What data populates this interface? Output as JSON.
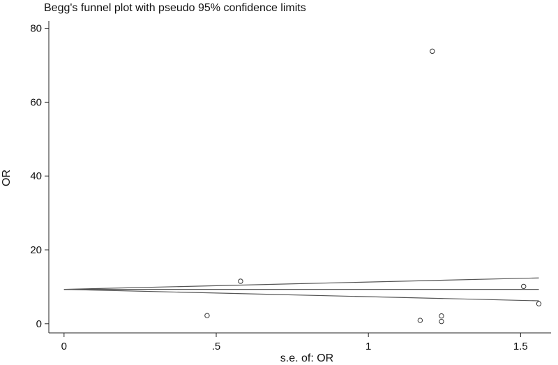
{
  "chart_data": {
    "type": "scatter",
    "title": "Begg's funnel plot with pseudo 95% confidence limits",
    "xlabel": "s.e. of: OR",
    "ylabel": "OR",
    "xlim": [
      -0.05,
      1.6
    ],
    "ylim": [
      -0.6,
      82
    ],
    "x_ticks": [
      {
        "value": 0,
        "label": "0"
      },
      {
        "value": 0.5,
        "label": ".5"
      },
      {
        "value": 1,
        "label": "1"
      },
      {
        "value": 1.5,
        "label": "1.5"
      }
    ],
    "y_ticks": [
      {
        "value": 0,
        "label": "0"
      },
      {
        "value": 20,
        "label": "20"
      },
      {
        "value": 40,
        "label": "40"
      },
      {
        "value": 60,
        "label": "60"
      },
      {
        "value": 80,
        "label": "80"
      }
    ],
    "grid": false,
    "points": [
      {
        "x": 0.47,
        "y": 2.2
      },
      {
        "x": 0.58,
        "y": 11.5
      },
      {
        "x": 1.17,
        "y": 0.9
      },
      {
        "x": 1.21,
        "y": 73.8
      },
      {
        "x": 1.24,
        "y": 2.1
      },
      {
        "x": 1.24,
        "y": 0.6
      },
      {
        "x": 1.51,
        "y": 10.1
      },
      {
        "x": 1.56,
        "y": 5.4
      }
    ],
    "lines": [
      {
        "name": "summary",
        "x": [
          0,
          1.56
        ],
        "y": [
          9.3,
          9.3
        ]
      },
      {
        "name": "upper limit",
        "x": [
          0,
          1.56
        ],
        "y": [
          9.3,
          12.4
        ]
      },
      {
        "name": "lower limit",
        "x": [
          0,
          1.56
        ],
        "y": [
          9.3,
          6.2
        ]
      }
    ]
  }
}
